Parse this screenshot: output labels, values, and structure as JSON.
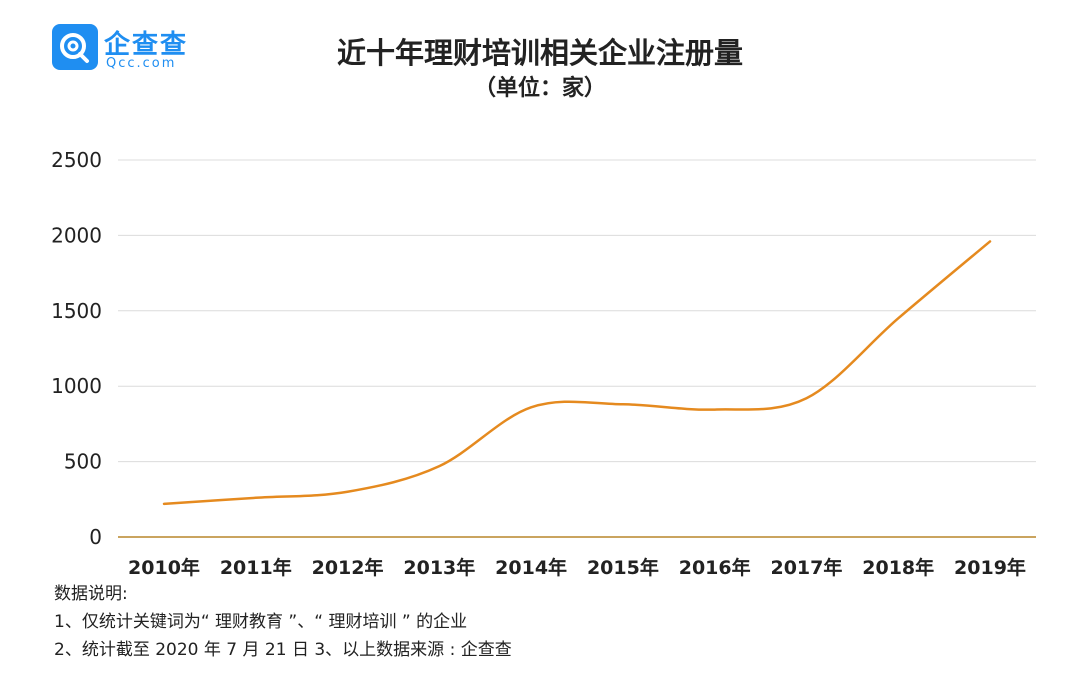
{
  "logo": {
    "name": "企查查",
    "sub": "Qcc.com"
  },
  "title": "近十年理财培训相关企业注册量",
  "subtitle": "（单位：家）",
  "colors": {
    "line": "#e58a1f",
    "grid": "#dcdcdc",
    "axis": "#b8862a",
    "brand": "#1f8ef1"
  },
  "chart_data": {
    "type": "line",
    "title": "近十年理财培训相关企业注册量",
    "subtitle": "（单位：家）",
    "categories": [
      "2010年",
      "2011年",
      "2012年",
      "2013年",
      "2014年",
      "2015年",
      "2016年",
      "2017年",
      "2018年",
      "2019年"
    ],
    "series": [
      {
        "values": [
          220,
          260,
          300,
          470,
          860,
          880,
          845,
          920,
          1450,
          1960
        ]
      }
    ],
    "yticks": [
      "0",
      "500",
      "1000",
      "1500",
      "2000",
      "2500"
    ],
    "ylim": [
      0,
      2500
    ],
    "grid": true,
    "legend": "none"
  },
  "notes": {
    "heading": "数据说明:",
    "line1": "1、仅统计关键词为“ 理财教育 ”、“ 理财培训 ” 的企业",
    "line2": "2、统计截至 2020 年 7 月 21 日    3、以上数据来源 : 企查查"
  }
}
